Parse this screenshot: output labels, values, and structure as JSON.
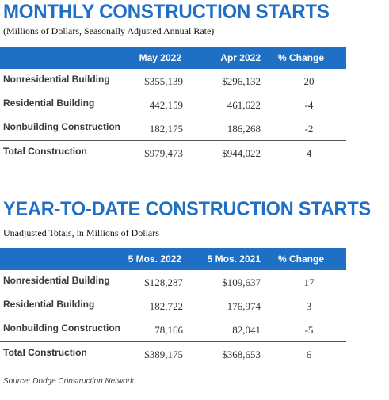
{
  "monthly": {
    "title": "MONTHLY CONSTRUCTION STARTS",
    "subtitle": "(Millions of Dollars, Seasonally Adjusted Annual Rate)",
    "headers": [
      "May 2022",
      "Apr 2022",
      "% Change"
    ],
    "rows": [
      {
        "label": "Nonresidential Building",
        "v1": "$355,139",
        "v2": "$296,132",
        "v3": "20"
      },
      {
        "label": "Residential Building",
        "v1": "442,159",
        "v2": "461,622",
        "v3": "-4"
      },
      {
        "label": "Nonbuilding Construction",
        "v1": "182,175",
        "v2": "186,268",
        "v3": "-2"
      }
    ],
    "total": {
      "label": "Total Construction",
      "v1": "$979,473",
      "v2": "$944,022",
      "v3": "4"
    }
  },
  "ytd": {
    "title": "YEAR-TO-DATE CONSTRUCTION STARTS",
    "subtitle": "Unadjusted Totals, in Millions of Dollars",
    "headers": [
      "5 Mos. 2022",
      "5 Mos. 2021",
      "% Change"
    ],
    "rows": [
      {
        "label": "Nonresidential Building",
        "v1": "$128,287",
        "v2": "$109,637",
        "v3": "17"
      },
      {
        "label": "Residential Building",
        "v1": "182,722",
        "v2": "176,974",
        "v3": "3"
      },
      {
        "label": "Nonbuilding Construction",
        "v1": "78,166",
        "v2": "82,041",
        "v3": "-5"
      }
    ],
    "total": {
      "label": "Total Construction",
      "v1": "$389,175",
      "v2": "$368,653",
      "v3": "6"
    }
  },
  "source": "Source: Dodge Construction Network",
  "colors": {
    "accent": "#1f6fc5",
    "rule": "#555555"
  }
}
